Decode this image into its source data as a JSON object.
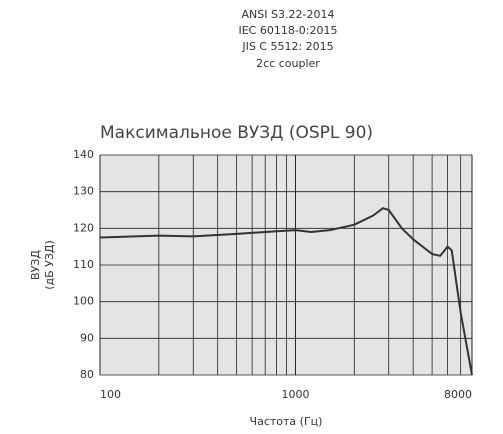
{
  "chart_data": {
    "type": "line",
    "header_lines": [
      "ANSI S3.22-2014",
      "IEC 60118-0:2015",
      "JIS C 5512: 2015",
      "2cc coupler"
    ],
    "title": "Максимальное ВУЗД (OSPL 90)",
    "y_label_lines": [
      "ВУЗД",
      "(дБ УЗД)"
    ],
    "x_label": "Частота (Гц)",
    "x_scale": "log",
    "xlim": [
      100,
      8000
    ],
    "xticks": [
      100,
      1000,
      8000
    ],
    "x_minor_ticks": [
      200,
      300,
      400,
      500,
      600,
      700,
      800,
      900,
      2000,
      3000,
      4000,
      5000,
      6000,
      7000
    ],
    "ylim": [
      80,
      140
    ],
    "yticks": [
      80,
      90,
      100,
      110,
      120,
      130,
      140
    ],
    "grid": true,
    "series": [
      {
        "color": "#333333",
        "x": [
          100,
          200,
          300,
          500,
          700,
          1000,
          1200,
          1500,
          2000,
          2500,
          2800,
          3000,
          3500,
          4000,
          5000,
          5500,
          6000,
          6300,
          7000,
          8000
        ],
        "values": [
          117.5,
          118,
          117.8,
          118.5,
          119,
          119.5,
          119,
          119.5,
          121,
          123.5,
          125.5,
          125,
          120,
          117,
          113,
          112.5,
          115,
          114,
          97,
          80
        ]
      }
    ]
  }
}
